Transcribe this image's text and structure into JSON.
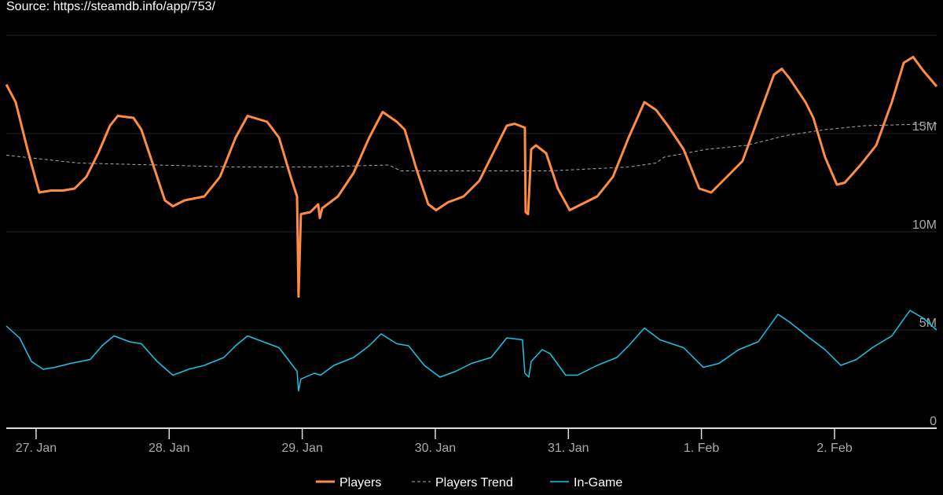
{
  "source": "Source: https://steamdb.info/app/753/",
  "chart_data": {
    "type": "line",
    "title": "",
    "xlabel": "",
    "ylabel": "",
    "x_unit": "days since 27. Jan 00:00",
    "xlim": [
      -0.224,
      6.768
    ],
    "ylim": [
      0,
      20
    ],
    "y_unit": "millions",
    "grid": true,
    "legend": "bottom-center",
    "x_ticks": [
      {
        "value": 0,
        "label": "27. Jan"
      },
      {
        "value": 1,
        "label": "28. Jan"
      },
      {
        "value": 2,
        "label": "29. Jan"
      },
      {
        "value": 3,
        "label": "30. Jan"
      },
      {
        "value": 4,
        "label": "31. Jan"
      },
      {
        "value": 5,
        "label": "1. Feb"
      },
      {
        "value": 6,
        "label": "2. Feb"
      }
    ],
    "y_ticks": [
      {
        "value": 0,
        "label": "0"
      },
      {
        "value": 5,
        "label": "5M"
      },
      {
        "value": 10,
        "label": "10M"
      },
      {
        "value": 15,
        "label": "15M"
      },
      {
        "value": 20,
        "label": ""
      }
    ],
    "series": [
      {
        "name": "Players",
        "color": "#ff8c42",
        "style": "solid",
        "width": 3,
        "points": [
          [
            -0.224,
            17.5
          ],
          [
            -0.154,
            16.6
          ],
          [
            -0.065,
            14.2
          ],
          [
            0.024,
            12.0
          ],
          [
            0.112,
            12.1
          ],
          [
            0.201,
            12.1
          ],
          [
            0.289,
            12.2
          ],
          [
            0.378,
            12.8
          ],
          [
            0.467,
            14.0
          ],
          [
            0.555,
            15.4
          ],
          [
            0.614,
            15.9
          ],
          [
            0.732,
            15.8
          ],
          [
            0.791,
            15.2
          ],
          [
            0.88,
            13.4
          ],
          [
            0.968,
            11.6
          ],
          [
            1.028,
            11.3
          ],
          [
            1.116,
            11.6
          ],
          [
            1.264,
            11.8
          ],
          [
            1.382,
            12.8
          ],
          [
            1.5,
            14.8
          ],
          [
            1.589,
            15.9
          ],
          [
            1.736,
            15.6
          ],
          [
            1.825,
            14.8
          ],
          [
            1.913,
            12.8
          ],
          [
            1.961,
            11.8
          ],
          [
            1.972,
            6.7
          ],
          [
            1.99,
            10.9
          ],
          [
            2.061,
            11.0
          ],
          [
            2.12,
            11.4
          ],
          [
            2.132,
            10.7
          ],
          [
            2.15,
            11.2
          ],
          [
            2.268,
            11.8
          ],
          [
            2.386,
            13.0
          ],
          [
            2.504,
            14.8
          ],
          [
            2.604,
            16.1
          ],
          [
            2.711,
            15.6
          ],
          [
            2.77,
            15.2
          ],
          [
            2.858,
            13.2
          ],
          [
            2.947,
            11.4
          ],
          [
            3.006,
            11.1
          ],
          [
            3.095,
            11.5
          ],
          [
            3.213,
            11.8
          ],
          [
            3.331,
            12.6
          ],
          [
            3.449,
            14.2
          ],
          [
            3.537,
            15.4
          ],
          [
            3.596,
            15.5
          ],
          [
            3.673,
            15.3
          ],
          [
            3.679,
            11.0
          ],
          [
            3.697,
            10.9
          ],
          [
            3.721,
            14.2
          ],
          [
            3.756,
            14.4
          ],
          [
            3.833,
            14.0
          ],
          [
            3.921,
            12.2
          ],
          [
            4.01,
            11.1
          ],
          [
            4.098,
            11.4
          ],
          [
            4.217,
            11.8
          ],
          [
            4.335,
            12.8
          ],
          [
            4.453,
            14.8
          ],
          [
            4.571,
            16.6
          ],
          [
            4.659,
            16.2
          ],
          [
            4.748,
            15.4
          ],
          [
            4.866,
            14.2
          ],
          [
            4.984,
            12.2
          ],
          [
            5.073,
            12.0
          ],
          [
            5.191,
            12.8
          ],
          [
            5.309,
            13.6
          ],
          [
            5.427,
            15.8
          ],
          [
            5.545,
            18.0
          ],
          [
            5.604,
            18.3
          ],
          [
            5.663,
            17.8
          ],
          [
            5.782,
            16.6
          ],
          [
            5.841,
            15.8
          ],
          [
            5.929,
            13.8
          ],
          [
            6.018,
            12.4
          ],
          [
            6.077,
            12.5
          ],
          [
            6.195,
            13.4
          ],
          [
            6.313,
            14.4
          ],
          [
            6.431,
            16.6
          ],
          [
            6.52,
            18.6
          ],
          [
            6.591,
            18.9
          ],
          [
            6.667,
            18.2
          ],
          [
            6.768,
            17.4
          ]
        ]
      },
      {
        "name": "Players Trend",
        "color": "#aaaaaa",
        "style": "dashed",
        "width": 1,
        "points": [
          [
            -0.224,
            13.9
          ],
          [
            0.319,
            13.5
          ],
          [
            0.909,
            13.4
          ],
          [
            1.5,
            13.3
          ],
          [
            2.091,
            13.3
          ],
          [
            2.652,
            13.4
          ],
          [
            2.74,
            13.1
          ],
          [
            3.272,
            13.1
          ],
          [
            3.862,
            13.1
          ],
          [
            4.453,
            13.3
          ],
          [
            4.659,
            13.5
          ],
          [
            4.719,
            13.8
          ],
          [
            5.043,
            14.2
          ],
          [
            5.339,
            14.4
          ],
          [
            5.634,
            14.9
          ],
          [
            5.929,
            15.2
          ],
          [
            6.225,
            15.4
          ],
          [
            6.768,
            15.5
          ]
        ]
      },
      {
        "name": "In-Game",
        "color": "#1ac3e8",
        "style": "solid",
        "width": 1.5,
        "points": [
          [
            -0.224,
            5.2
          ],
          [
            -0.124,
            4.6
          ],
          [
            -0.035,
            3.4
          ],
          [
            0.053,
            3.0
          ],
          [
            0.142,
            3.1
          ],
          [
            0.26,
            3.3
          ],
          [
            0.407,
            3.5
          ],
          [
            0.496,
            4.2
          ],
          [
            0.585,
            4.7
          ],
          [
            0.703,
            4.4
          ],
          [
            0.791,
            4.3
          ],
          [
            0.909,
            3.4
          ],
          [
            1.028,
            2.7
          ],
          [
            1.146,
            3.0
          ],
          [
            1.264,
            3.2
          ],
          [
            1.411,
            3.6
          ],
          [
            1.5,
            4.2
          ],
          [
            1.589,
            4.7
          ],
          [
            1.707,
            4.4
          ],
          [
            1.825,
            4.1
          ],
          [
            1.961,
            2.9
          ],
          [
            1.972,
            1.9
          ],
          [
            1.99,
            2.5
          ],
          [
            2.091,
            2.8
          ],
          [
            2.138,
            2.7
          ],
          [
            2.238,
            3.2
          ],
          [
            2.386,
            3.6
          ],
          [
            2.504,
            4.2
          ],
          [
            2.593,
            4.8
          ],
          [
            2.711,
            4.3
          ],
          [
            2.799,
            4.2
          ],
          [
            2.917,
            3.2
          ],
          [
            3.035,
            2.6
          ],
          [
            3.154,
            2.9
          ],
          [
            3.272,
            3.3
          ],
          [
            3.419,
            3.6
          ],
          [
            3.537,
            4.6
          ],
          [
            3.655,
            4.5
          ],
          [
            3.673,
            2.8
          ],
          [
            3.703,
            2.6
          ],
          [
            3.721,
            3.4
          ],
          [
            3.803,
            4.0
          ],
          [
            3.862,
            3.8
          ],
          [
            3.98,
            2.7
          ],
          [
            4.069,
            2.7
          ],
          [
            4.217,
            3.2
          ],
          [
            4.364,
            3.6
          ],
          [
            4.453,
            4.2
          ],
          [
            4.571,
            5.1
          ],
          [
            4.689,
            4.5
          ],
          [
            4.866,
            4.1
          ],
          [
            5.014,
            3.1
          ],
          [
            5.132,
            3.3
          ],
          [
            5.28,
            4.0
          ],
          [
            5.427,
            4.4
          ],
          [
            5.575,
            5.8
          ],
          [
            5.663,
            5.4
          ],
          [
            5.811,
            4.6
          ],
          [
            5.929,
            4.0
          ],
          [
            6.047,
            3.2
          ],
          [
            6.165,
            3.5
          ],
          [
            6.284,
            4.1
          ],
          [
            6.431,
            4.7
          ],
          [
            6.567,
            6.0
          ],
          [
            6.667,
            5.6
          ],
          [
            6.768,
            5.0
          ]
        ]
      }
    ]
  }
}
